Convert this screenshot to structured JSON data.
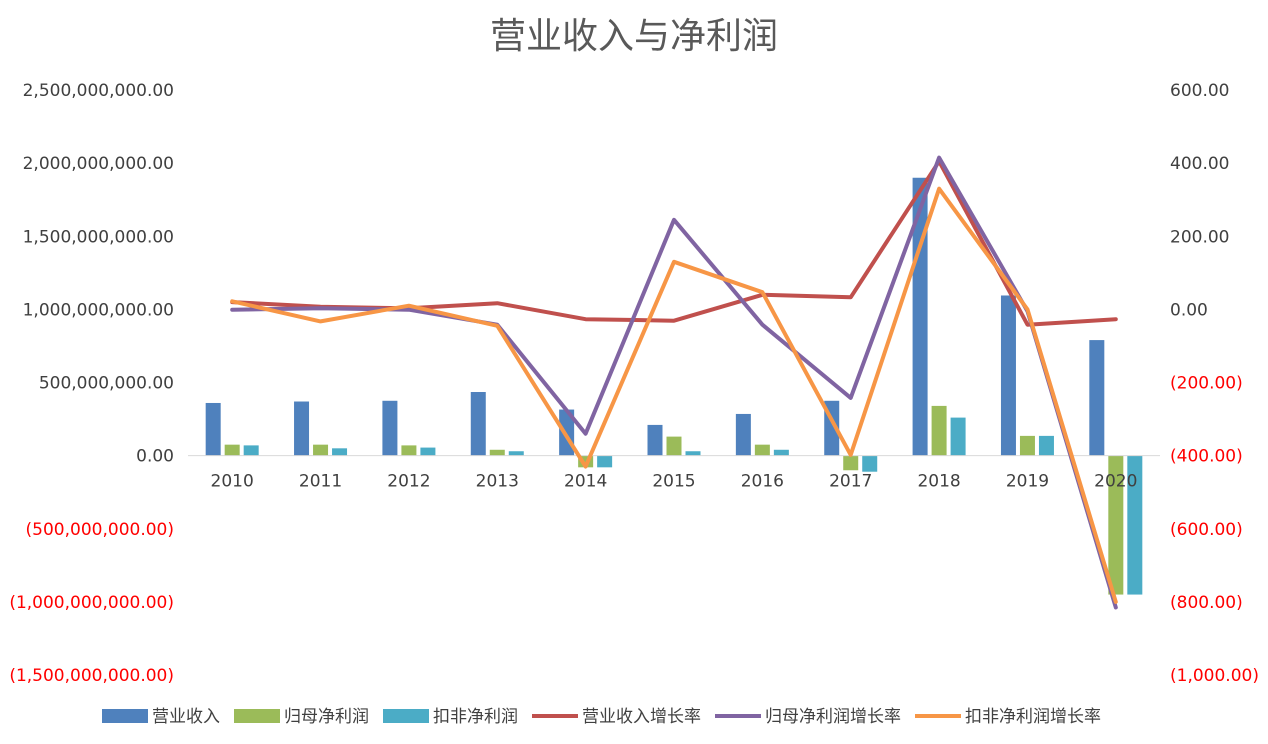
{
  "chart_data": {
    "type": "bar",
    "title": "营业收入与净利润",
    "categories": [
      "2010",
      "2011",
      "2012",
      "2013",
      "2014",
      "2015",
      "2016",
      "2017",
      "2018",
      "2019",
      "2020"
    ],
    "left_axis": {
      "ylim": [
        -1500000000,
        2500000000
      ],
      "ticks": [
        2500000000,
        2000000000,
        1500000000,
        1000000000,
        500000000,
        0,
        -500000000,
        -1000000000,
        -1500000000
      ],
      "tick_labels": [
        "2,500,000,000.00",
        "2,000,000,000.00",
        "1,500,000,000.00",
        "1,000,000,000.00",
        "500,000,000.00",
        "0.00",
        "(500,000,000.00)",
        "(1,000,000,000.00)",
        "(1,500,000,000.00)"
      ]
    },
    "right_axis": {
      "ylim": [
        -1000,
        600
      ],
      "ticks": [
        600,
        400,
        200,
        0,
        -200,
        -400,
        -600,
        -800,
        -1000
      ],
      "tick_labels": [
        "600.00",
        "400.00",
        "200.00",
        "0.00",
        "(200.00)",
        "(400.00)",
        "(600.00)",
        "(800.00)",
        "(1,000.00)"
      ]
    },
    "negative_label_color": "#ff0000",
    "bar_series": [
      {
        "name": "营业收入",
        "color": "#4f81bd",
        "values": [
          360000000,
          370000000,
          375000000,
          435000000,
          315000000,
          210000000,
          285000000,
          375000000,
          1900000000,
          1095000000,
          790000000
        ]
      },
      {
        "name": "归母净利润",
        "color": "#9bbb59",
        "values": [
          75000000,
          75000000,
          70000000,
          40000000,
          -80000000,
          130000000,
          75000000,
          -100000000,
          340000000,
          135000000,
          -950000000
        ]
      },
      {
        "name": "扣非净利润",
        "color": "#4bacc6",
        "values": [
          70000000,
          50000000,
          55000000,
          30000000,
          -80000000,
          30000000,
          40000000,
          -110000000,
          260000000,
          135000000,
          -950000000
        ]
      }
    ],
    "line_series": [
      {
        "name": "营业收入增长率",
        "color": "#c0504d",
        "values": [
          20,
          7,
          3,
          17,
          -27,
          -31,
          40,
          33,
          405,
          -42,
          -27
        ]
      },
      {
        "name": "归母净利润增长率",
        "color": "#8064a2",
        "values": [
          -1,
          3,
          -1,
          -42,
          -340,
          245,
          -42,
          -242,
          415,
          -5,
          -815
        ]
      },
      {
        "name": "扣非净利润增长率",
        "color": "#f79646",
        "values": [
          22,
          -33,
          10,
          -45,
          -430,
          130,
          47,
          -398,
          330,
          0,
          -800
        ]
      }
    ],
    "legend_position": "bottom",
    "grid": false
  }
}
